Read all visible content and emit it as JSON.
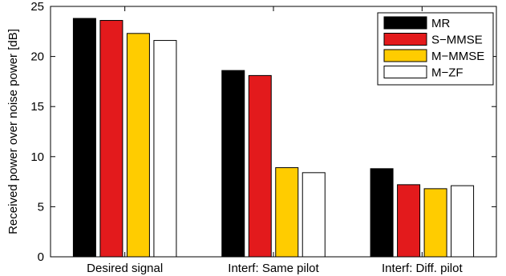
{
  "chart_data": {
    "type": "bar",
    "title": "",
    "xlabel": "",
    "ylabel": "Received power over noise power [dB]",
    "ylim": [
      0,
      25
    ],
    "yticks": [
      0,
      5,
      10,
      15,
      20,
      25
    ],
    "categories": [
      "Desired signal",
      "Interf: Same pilot",
      "Interf: Diff. pilot"
    ],
    "series": [
      {
        "name": "MR",
        "color": "#000000",
        "values": [
          23.8,
          18.6,
          8.8
        ]
      },
      {
        "name": "S−MMSE",
        "color": "#e31a1c",
        "values": [
          23.6,
          18.1,
          7.2
        ]
      },
      {
        "name": "M−MMSE",
        "color": "#ffcc00",
        "values": [
          22.3,
          8.9,
          6.8
        ]
      },
      {
        "name": "M−ZF",
        "color": "#ffffff",
        "values": [
          21.6,
          8.4,
          7.1
        ]
      }
    ],
    "grid": false,
    "legend_position": "top-right"
  }
}
